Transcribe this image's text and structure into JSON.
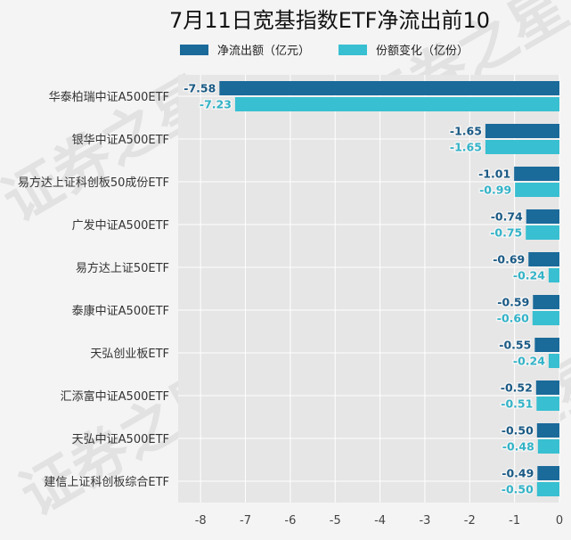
{
  "chart_data": {
    "type": "bar",
    "orientation": "horizontal",
    "title": "7月11日宽基指数ETF净流出前10",
    "categories": [
      "华泰柏瑞中证A500ETF",
      "银华中证A500ETF",
      "易方达上证科创板50成份ETF",
      "广发中证A500ETF",
      "易方达上证50ETF",
      "泰康中证A500ETF",
      "天弘创业板ETF",
      "汇添富中证A500ETF",
      "天弘中证A500ETF",
      "建信上证科创板综合ETF"
    ],
    "series": [
      {
        "name": "净流出额（亿元）",
        "color": "#1a6a9a",
        "label_color": "#1a5a85",
        "values": [
          -7.58,
          -1.65,
          -1.01,
          -0.74,
          -0.69,
          -0.59,
          -0.55,
          -0.52,
          -0.5,
          -0.49
        ],
        "labels": [
          "-7.58",
          "-1.65",
          "-1.01",
          "-0.74",
          "-0.69",
          "-0.59",
          "-0.55",
          "-0.52",
          "-0.50",
          "-0.49"
        ]
      },
      {
        "name": "份额变化（亿份）",
        "color": "#38bfd1",
        "label_color": "#33b3c8",
        "values": [
          -7.23,
          -1.65,
          -0.99,
          -0.75,
          -0.24,
          -0.6,
          -0.24,
          -0.51,
          -0.48,
          -0.5
        ],
        "labels": [
          "-7.23",
          "-1.65",
          "-0.99",
          "-0.75",
          "-0.24",
          "-0.60",
          "-0.24",
          "-0.51",
          "-0.48",
          "-0.50"
        ]
      }
    ],
    "xlim": [
      -8.5,
      0
    ],
    "xticks": [
      -8,
      -7,
      -6,
      -5,
      -4,
      -3,
      -2,
      -1,
      0
    ],
    "xtick_labels": [
      "-8",
      "-7",
      "-6",
      "-5",
      "-4",
      "-3",
      "-2",
      "-1",
      "0"
    ],
    "grid": true,
    "legend_position": "top",
    "watermark": "证券之星"
  }
}
